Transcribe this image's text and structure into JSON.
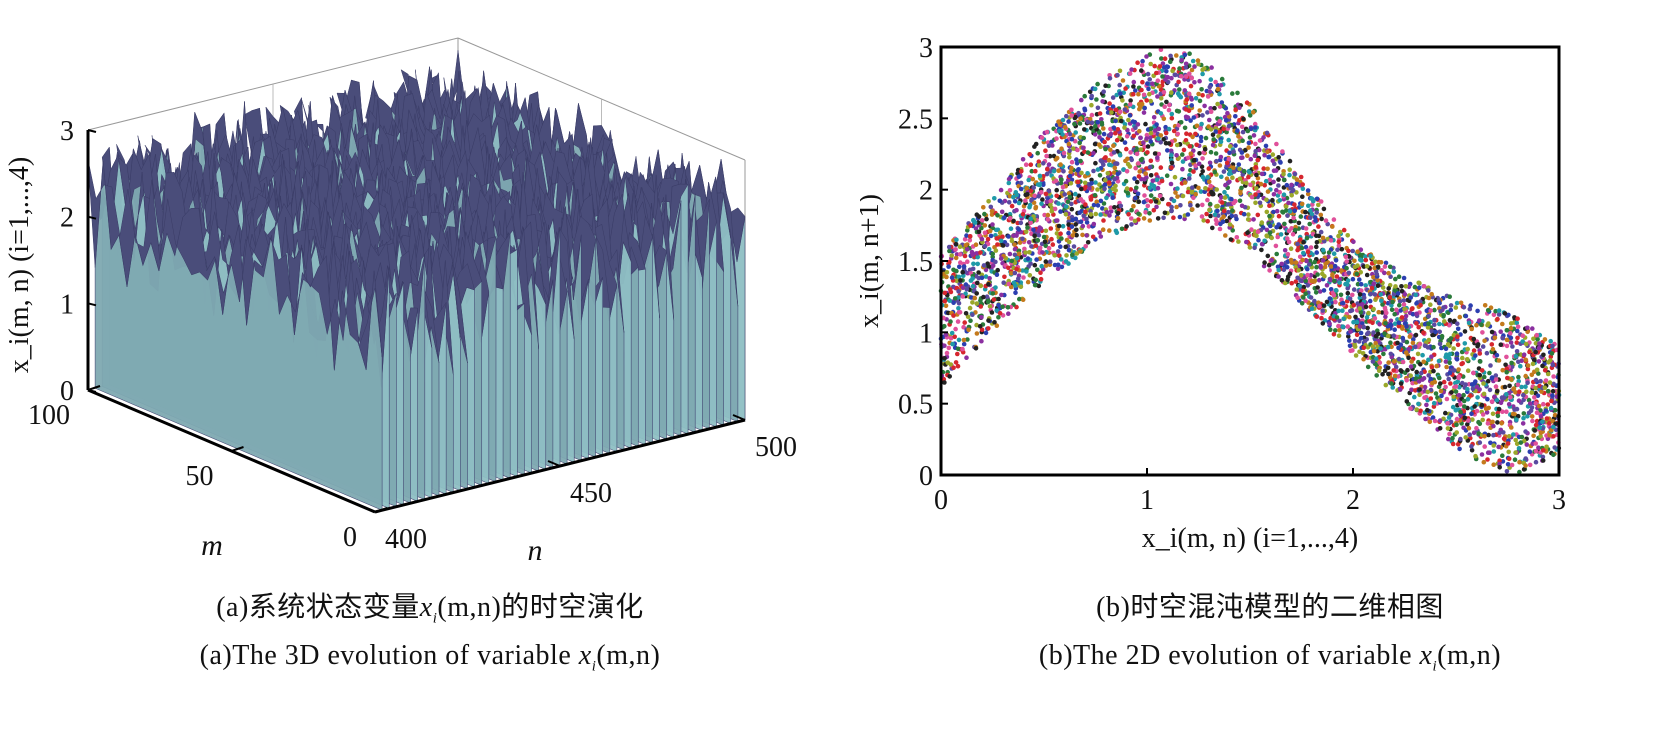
{
  "chart_data": [
    {
      "type": "surface3d",
      "zlabel": "x_i(m, n)  (i=1,...,4)",
      "xlabel": "n",
      "ylabel": "m",
      "x_range": [
        400,
        500
      ],
      "y_range": [
        0,
        100
      ],
      "z_range": [
        0,
        3
      ],
      "x_ticks": [
        "400",
        "450",
        "500"
      ],
      "y_ticks": [
        "0",
        "50",
        "100"
      ],
      "z_ticks": [
        "0",
        "1",
        "2",
        "3"
      ],
      "surface_top_color": "#4a4d7a",
      "surface_side_color": "#8fbfc4",
      "grid": false,
      "caption_cn": "(a)系统状态变量x_i(m,n)的时空演化",
      "caption_en": "(a)The 3D evolution of variable x_i(m,n)"
    },
    {
      "type": "scatter",
      "xlabel": "x_i(m, n)  (i=1,...,4)",
      "ylabel": "x_i(m, n+1)",
      "xlim": [
        0,
        3
      ],
      "ylim": [
        0,
        3
      ],
      "x_ticks": [
        "0",
        "1",
        "2",
        "3"
      ],
      "y_ticks": [
        "0",
        "0.5",
        "1",
        "1.5",
        "2",
        "2.5",
        "3"
      ],
      "lower_boundary": {
        "x": [
          0,
          0.25,
          0.5,
          0.75,
          1.0,
          1.1,
          1.25,
          1.5,
          1.75,
          2.0,
          2.25,
          2.5,
          2.65,
          2.8,
          3.0
        ],
        "y": [
          0.6,
          1.0,
          1.35,
          1.62,
          1.78,
          1.8,
          1.78,
          1.55,
          1.2,
          0.85,
          0.5,
          0.2,
          0.05,
          0.0,
          0.15
        ]
      },
      "upper_boundary": {
        "x": [
          0,
          0.25,
          0.5,
          0.75,
          1.0,
          1.1,
          1.25,
          1.5,
          1.75,
          2.0,
          2.25,
          2.5,
          2.75,
          3.0
        ],
        "y": [
          1.55,
          1.95,
          2.4,
          2.75,
          2.95,
          3.0,
          2.95,
          2.6,
          2.1,
          1.65,
          1.4,
          1.25,
          1.15,
          0.9
        ]
      },
      "point_colors": [
        "#d6262e",
        "#2a7a3a",
        "#2b3fb0",
        "#c47a1c",
        "#8b2fa0",
        "#1f9aa8",
        "#9aa82a",
        "#222222",
        "#e0509a",
        "#5a4aa0"
      ],
      "caption_cn": "(b)时空混沌模型的二维相图",
      "caption_en": "(b)The 2D evolution of variable x_i(m,n)"
    }
  ],
  "captions": {
    "a_cn_pre": "(a)系统状态变量",
    "a_cn_var": "x",
    "a_cn_sub": "i",
    "a_cn_post": "(m,n)的时空演化",
    "a_en_pre": "(a)The 3D evolution of variable ",
    "a_en_var": "x",
    "a_en_sub": "i",
    "a_en_post": "(m,n)",
    "b_cn": "(b)时空混沌模型的二维相图",
    "b_en_pre": "(b)The 2D evolution of variable ",
    "b_en_var": "x",
    "b_en_sub": "i",
    "b_en_post": "(m,n)"
  }
}
